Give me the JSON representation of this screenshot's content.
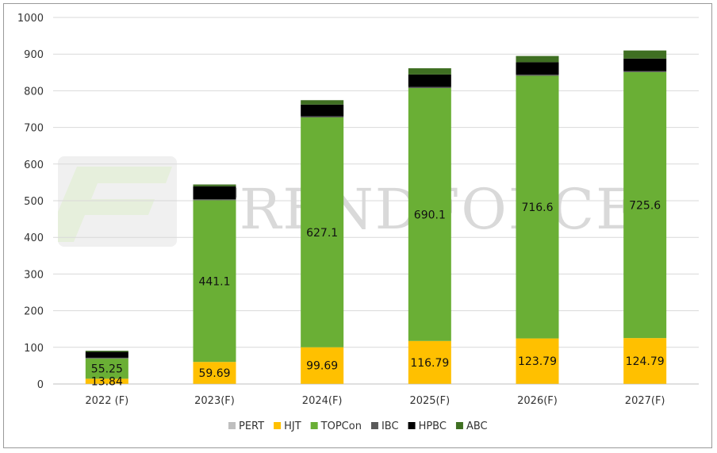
{
  "chart_data": {
    "type": "bar",
    "stacked": true,
    "categories": [
      "2022 (F)",
      "2023(F)",
      "2024(F)",
      "2025(F)",
      "2026(F)",
      "2027(F)"
    ],
    "ylim": [
      0,
      1000
    ],
    "yticks": [
      0,
      100,
      200,
      300,
      400,
      500,
      600,
      700,
      800,
      900,
      1000
    ],
    "grid": true,
    "legend_position": "bottom",
    "series": [
      {
        "name": "PERT",
        "color": "#bfbfbf",
        "values": [
          0.5,
          0.5,
          0.5,
          0.5,
          0.5,
          0.5
        ],
        "show_labels": false
      },
      {
        "name": "HJT",
        "color": "#ffc000",
        "values": [
          13.84,
          59.69,
          99.69,
          116.79,
          123.79,
          124.79
        ],
        "show_labels": true
      },
      {
        "name": "TOPCon",
        "color": "#6aaf35",
        "values": [
          55.25,
          441.1,
          627.1,
          690.1,
          716.6,
          725.6
        ],
        "show_labels": true
      },
      {
        "name": "IBC",
        "color": "#5a5a5a",
        "values": [
          2,
          3,
          3,
          3,
          3,
          3
        ],
        "show_labels": false
      },
      {
        "name": "HPBC",
        "color": "#000000",
        "values": [
          16,
          35,
          32,
          34,
          34,
          34
        ],
        "show_labels": false
      },
      {
        "name": "ABC",
        "color": "#3f6f22",
        "values": [
          3,
          5,
          12,
          17,
          17,
          22
        ],
        "show_labels": false
      }
    ],
    "data_labels": {
      "HJT": [
        "13.84",
        "59.69",
        "99.69",
        "116.79",
        "123.79",
        "124.79"
      ],
      "TOPCon": [
        "55.25",
        "441.1",
        "627.1",
        "690.1",
        "716.6",
        "725.6"
      ]
    }
  },
  "watermark": {
    "text": "TRENDFORCE"
  }
}
